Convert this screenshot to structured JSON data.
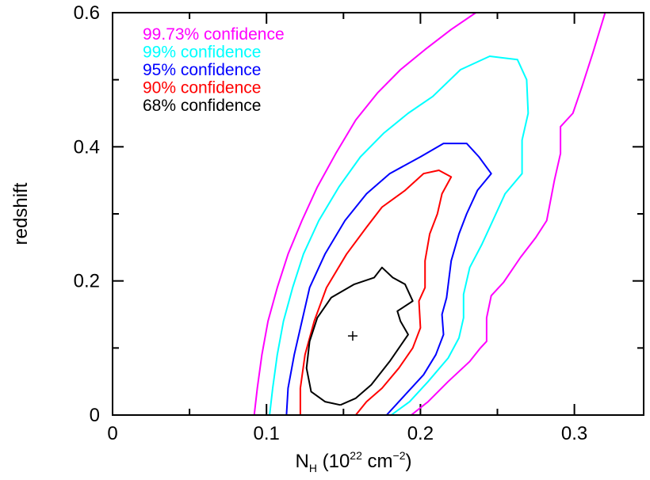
{
  "chart_data": {
    "type": "contour",
    "xlabel": {
      "main": "N",
      "sub": "H",
      "rest_open": " (10",
      "sup": "22",
      "rest_mid": " cm",
      "sup2": "−2",
      "rest_close": ")"
    },
    "ylabel": "redshift",
    "xlim": [
      0,
      0.345
    ],
    "ylim": [
      0,
      0.6
    ],
    "x_ticks": [
      {
        "value": 0,
        "label": "0"
      },
      {
        "value": 0.1,
        "label": "0.1"
      },
      {
        "value": 0.2,
        "label": "0.2"
      },
      {
        "value": 0.3,
        "label": "0.3"
      }
    ],
    "x_minor_ticks": [
      0.05,
      0.15,
      0.25
    ],
    "y_ticks": [
      {
        "value": 0,
        "label": "0"
      },
      {
        "value": 0.2,
        "label": "0.2"
      },
      {
        "value": 0.4,
        "label": "0.4"
      },
      {
        "value": 0.6,
        "label": "0.6"
      }
    ],
    "y_minor_ticks": [
      0.1,
      0.3,
      0.5
    ],
    "legend_position": "top-left",
    "best_fit": {
      "x": 0.156,
      "y": 0.118,
      "marker": "+"
    },
    "series": [
      {
        "name": "99.73% confidence",
        "color": "#ff00ff",
        "paths": [
          [
            [
              0.092,
              0
            ],
            [
              0.094,
              0.04
            ],
            [
              0.097,
              0.09
            ],
            [
              0.101,
              0.14
            ],
            [
              0.107,
              0.19
            ],
            [
              0.114,
              0.24
            ],
            [
              0.123,
              0.29
            ],
            [
              0.133,
              0.34
            ],
            [
              0.145,
              0.39
            ],
            [
              0.158,
              0.44
            ],
            [
              0.172,
              0.48
            ],
            [
              0.187,
              0.515
            ],
            [
              0.203,
              0.545
            ],
            [
              0.22,
              0.575
            ],
            [
              0.236,
              0.6
            ]
          ],
          [
            [
              0.194,
              0
            ],
            [
              0.205,
              0.02
            ],
            [
              0.218,
              0.05
            ],
            [
              0.232,
              0.08
            ],
            [
              0.239,
              0.1
            ],
            [
              0.243,
              0.11
            ],
            [
              0.243,
              0.145
            ],
            [
              0.246,
              0.178
            ],
            [
              0.254,
              0.198
            ],
            [
              0.265,
              0.235
            ],
            [
              0.275,
              0.265
            ],
            [
              0.282,
              0.29
            ],
            [
              0.287,
              0.35
            ],
            [
              0.291,
              0.39
            ],
            [
              0.291,
              0.43
            ],
            [
              0.299,
              0.45
            ],
            [
              0.305,
              0.49
            ],
            [
              0.312,
              0.54
            ],
            [
              0.32,
              0.6
            ]
          ]
        ]
      },
      {
        "name": "99% confidence",
        "color": "#00ffff",
        "paths": [
          [
            [
              0.102,
              0
            ],
            [
              0.104,
              0.04
            ],
            [
              0.107,
              0.09
            ],
            [
              0.111,
              0.14
            ],
            [
              0.117,
              0.19
            ],
            [
              0.124,
              0.24
            ],
            [
              0.134,
              0.29
            ],
            [
              0.147,
              0.34
            ],
            [
              0.161,
              0.385
            ],
            [
              0.176,
              0.42
            ],
            [
              0.192,
              0.45
            ],
            [
              0.208,
              0.475
            ],
            [
              0.226,
              0.515
            ],
            [
              0.245,
              0.535
            ],
            [
              0.263,
              0.53
            ],
            [
              0.269,
              0.5
            ],
            [
              0.27,
              0.45
            ],
            [
              0.266,
              0.41
            ],
            [
              0.266,
              0.36
            ],
            [
              0.255,
              0.33
            ],
            [
              0.247,
              0.29
            ],
            [
              0.24,
              0.255
            ],
            [
              0.232,
              0.22
            ],
            [
              0.228,
              0.18
            ],
            [
              0.228,
              0.145
            ],
            [
              0.225,
              0.115
            ],
            [
              0.218,
              0.085
            ],
            [
              0.205,
              0.05
            ],
            [
              0.193,
              0.02
            ],
            [
              0.181,
              0
            ]
          ]
        ]
      },
      {
        "name": "95% confidence",
        "color": "#0000ff",
        "paths": [
          [
            [
              0.113,
              0
            ],
            [
              0.114,
              0.04
            ],
            [
              0.118,
              0.09
            ],
            [
              0.123,
              0.14
            ],
            [
              0.128,
              0.19
            ],
            [
              0.138,
              0.24
            ],
            [
              0.151,
              0.29
            ],
            [
              0.165,
              0.33
            ],
            [
              0.18,
              0.36
            ],
            [
              0.2,
              0.385
            ],
            [
              0.215,
              0.405
            ],
            [
              0.23,
              0.405
            ],
            [
              0.238,
              0.385
            ],
            [
              0.246,
              0.36
            ],
            [
              0.237,
              0.335
            ],
            [
              0.23,
              0.3
            ],
            [
              0.225,
              0.27
            ],
            [
              0.22,
              0.23
            ],
            [
              0.217,
              0.175
            ],
            [
              0.214,
              0.15
            ],
            [
              0.215,
              0.12
            ],
            [
              0.21,
              0.09
            ],
            [
              0.202,
              0.06
            ],
            [
              0.19,
              0.03
            ],
            [
              0.178,
              0
            ]
          ]
        ]
      },
      {
        "name": "90% confidence",
        "color": "#ff0000",
        "paths": [
          [
            [
              0.122,
              0
            ],
            [
              0.122,
              0.04
            ],
            [
              0.125,
              0.09
            ],
            [
              0.131,
              0.14
            ],
            [
              0.139,
              0.19
            ],
            [
              0.152,
              0.24
            ],
            [
              0.165,
              0.28
            ],
            [
              0.175,
              0.31
            ],
            [
              0.19,
              0.335
            ],
            [
              0.202,
              0.36
            ],
            [
              0.212,
              0.365
            ],
            [
              0.22,
              0.355
            ],
            [
              0.214,
              0.33
            ],
            [
              0.211,
              0.3
            ],
            [
              0.206,
              0.27
            ],
            [
              0.203,
              0.23
            ],
            [
              0.203,
              0.19
            ],
            [
              0.199,
              0.17
            ],
            [
              0.2,
              0.13
            ],
            [
              0.195,
              0.1
            ],
            [
              0.186,
              0.07
            ],
            [
              0.175,
              0.04
            ],
            [
              0.165,
              0.02
            ],
            [
              0.158,
              0
            ]
          ]
        ]
      },
      {
        "name": "68% confidence",
        "color": "#000000",
        "paths": [
          [
            [
              0.148,
              0.015
            ],
            [
              0.138,
              0.02
            ],
            [
              0.129,
              0.035
            ],
            [
              0.126,
              0.07
            ],
            [
              0.128,
              0.11
            ],
            [
              0.133,
              0.145
            ],
            [
              0.142,
              0.175
            ],
            [
              0.157,
              0.195
            ],
            [
              0.17,
              0.205
            ],
            [
              0.175,
              0.22
            ],
            [
              0.182,
              0.205
            ],
            [
              0.19,
              0.195
            ],
            [
              0.195,
              0.17
            ],
            [
              0.185,
              0.155
            ],
            [
              0.187,
              0.14
            ],
            [
              0.192,
              0.12
            ],
            [
              0.18,
              0.08
            ],
            [
              0.168,
              0.045
            ],
            [
              0.158,
              0.025
            ],
            [
              0.148,
              0.015
            ]
          ]
        ]
      }
    ]
  }
}
